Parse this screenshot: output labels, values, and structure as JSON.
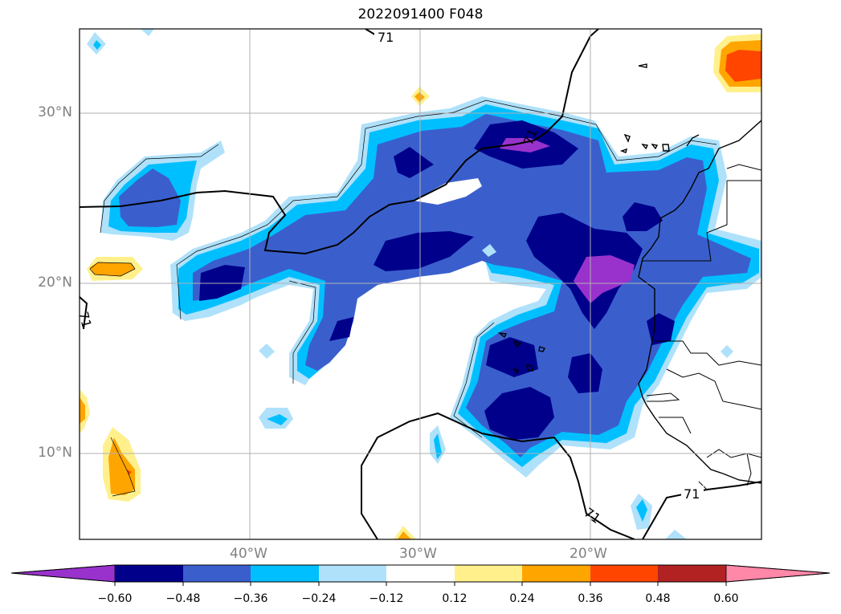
{
  "title": "2022091400 F048",
  "map": {
    "lat_labels": [
      "30°N",
      "20°N",
      "10°N"
    ],
    "lon_labels": [
      "40°W",
      "30°W",
      "20°W"
    ],
    "contour_label": "71"
  },
  "colorbar": {
    "ticks": [
      "−0.60",
      "−0.48",
      "−0.36",
      "−0.24",
      "−0.12",
      "0.12",
      "0.24",
      "0.36",
      "0.48",
      "0.60"
    ],
    "colors": [
      "#9932cc",
      "#00008b",
      "#3a5fcd",
      "#00bfff",
      "#afe1fa",
      "#ffffff",
      "#fff08c",
      "#ffa500",
      "#ff4500",
      "#b22222",
      "#ff87a8"
    ]
  }
}
